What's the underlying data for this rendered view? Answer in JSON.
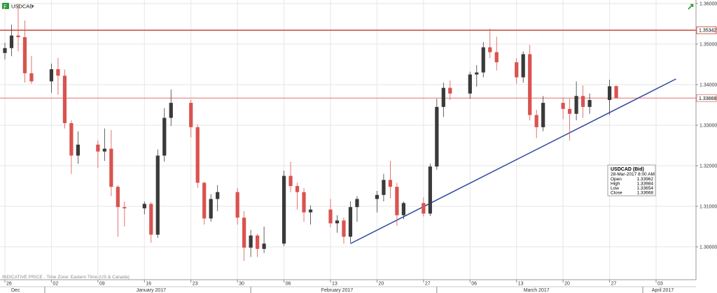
{
  "header": {
    "symbol": "USDCAD",
    "symbol_icon": "chart-type-icon",
    "dropdown_icon": "caret-down-icon",
    "corner_icon": "trend-arrow-icon"
  },
  "footer_note": "INDICATIVE PRICE · Time Zone: Eastern Time (US & Canada)",
  "info_panel": {
    "title": "USDCAD (Bid)",
    "datetime": "28-Mar-2017 8:00 AM",
    "rows": [
      {
        "label": "Open",
        "value": "1.33962"
      },
      {
        "label": "High",
        "value": "1.33984"
      },
      {
        "label": "Low",
        "value": "1.33654"
      },
      {
        "label": "Close",
        "value": "1.33668"
      }
    ]
  },
  "colors": {
    "up": "#3a3a3a",
    "down": "#d9534f",
    "resistance": "#c0392b",
    "last_price": "#e07070",
    "trendline": "#2e4a9e",
    "grid": "#e6e6e6"
  },
  "chart_data": {
    "type": "candlestick",
    "title": "",
    "xlabel": "",
    "ylabel": "",
    "ylim": [
      1.292,
      1.36
    ],
    "y_ticks": [
      {
        "value": 1.36,
        "label": "1.36000"
      },
      {
        "value": 1.35,
        "label": "1.35000"
      },
      {
        "value": 1.34,
        "label": "1.34000"
      },
      {
        "value": 1.33,
        "label": "1.33000"
      },
      {
        "value": 1.32,
        "label": "1.32000"
      },
      {
        "value": 1.31,
        "label": "1.31000"
      },
      {
        "value": 1.3,
        "label": "1.30000"
      }
    ],
    "x_day_ticks": [
      "26",
      "02",
      "09",
      "16",
      "23",
      "30",
      "06",
      "13",
      "20",
      "27",
      "06",
      "13",
      "20",
      "27",
      "03"
    ],
    "x_months": [
      "Dec",
      "January 2017",
      "February 2017",
      "March 2017",
      "April 2017"
    ],
    "horizontal_lines": [
      {
        "name": "resistance",
        "value": 1.35342,
        "label": "1.35342"
      },
      {
        "name": "last-price",
        "value": 1.33668,
        "label": "1.33668"
      }
    ],
    "trendline": {
      "from": {
        "x": "2017-02-16",
        "y": 1.3008
      },
      "to": {
        "x": "2017-04-06",
        "y": 1.3414
      }
    },
    "series": [
      {
        "x": "2016-12-26",
        "values": [
          1.3478,
          1.3503,
          1.3462,
          1.349
        ]
      },
      {
        "x": "2016-12-27",
        "values": [
          1.349,
          1.3548,
          1.347,
          1.3521
        ]
      },
      {
        "x": "2016-12-28",
        "values": [
          1.3521,
          1.3599,
          1.3482,
          1.3517
        ]
      },
      {
        "x": "2016-12-29",
        "values": [
          1.3517,
          1.3558,
          1.3405,
          1.3428
        ]
      },
      {
        "x": "2016-12-30",
        "values": [
          1.3428,
          1.3471,
          1.3402,
          1.3408
        ]
      },
      {
        "x": "2017-01-02",
        "values": [
          1.3408,
          1.3452,
          1.338,
          1.3438
        ]
      },
      {
        "x": "2017-01-03",
        "values": [
          1.3438,
          1.3466,
          1.3375,
          1.3422
        ]
      },
      {
        "x": "2017-01-04",
        "values": [
          1.3422,
          1.3437,
          1.3292,
          1.3305
        ]
      },
      {
        "x": "2017-01-05",
        "values": [
          1.3305,
          1.3312,
          1.318,
          1.3225
        ]
      },
      {
        "x": "2017-01-06",
        "values": [
          1.3225,
          1.3285,
          1.3205,
          1.3252
        ]
      },
      {
        "x": "2017-01-09",
        "values": [
          1.3252,
          1.3262,
          1.3195,
          1.3235
        ]
      },
      {
        "x": "2017-01-10",
        "values": [
          1.3235,
          1.3292,
          1.3212,
          1.3242
        ]
      },
      {
        "x": "2017-01-11",
        "values": [
          1.3242,
          1.3288,
          1.3125,
          1.3148
        ]
      },
      {
        "x": "2017-01-12",
        "values": [
          1.3148,
          1.3152,
          1.3025,
          1.3098
        ]
      },
      {
        "x": "2017-01-13",
        "values": [
          1.3098,
          1.3112,
          1.305,
          1.3095
        ]
      },
      {
        "x": "2017-01-16",
        "values": [
          1.3095,
          1.3112,
          1.308,
          1.3106
        ]
      },
      {
        "x": "2017-01-17",
        "values": [
          1.3106,
          1.311,
          1.301,
          1.303
        ]
      },
      {
        "x": "2017-01-18",
        "values": [
          1.303,
          1.324,
          1.3022,
          1.3225
        ]
      },
      {
        "x": "2017-01-19",
        "values": [
          1.3225,
          1.3342,
          1.321,
          1.3318
        ]
      },
      {
        "x": "2017-01-20",
        "values": [
          1.3318,
          1.3388,
          1.3298,
          1.3355
        ]
      },
      {
        "x": "2017-01-23",
        "values": [
          1.3355,
          1.3362,
          1.327,
          1.3295
        ]
      },
      {
        "x": "2017-01-24",
        "values": [
          1.3295,
          1.3302,
          1.3145,
          1.3158
        ]
      },
      {
        "x": "2017-01-25",
        "values": [
          1.3158,
          1.316,
          1.3055,
          1.307
        ]
      },
      {
        "x": "2017-01-26",
        "values": [
          1.307,
          1.313,
          1.3062,
          1.3118
        ]
      },
      {
        "x": "2017-01-27",
        "values": [
          1.3118,
          1.3152,
          1.3088,
          1.3135
        ]
      },
      {
        "x": "2017-01-30",
        "values": [
          1.3135,
          1.3145,
          1.3055,
          1.3072
        ]
      },
      {
        "x": "2017-01-31",
        "values": [
          1.3072,
          1.3088,
          1.2965,
          1.2998
        ]
      },
      {
        "x": "2017-02-01",
        "values": [
          1.2998,
          1.3042,
          1.2975,
          1.3028
        ]
      },
      {
        "x": "2017-02-02",
        "values": [
          1.3028,
          1.3032,
          1.2975,
          1.2995
        ]
      },
      {
        "x": "2017-02-03",
        "values": [
          1.2995,
          1.305,
          1.2985,
          1.3008
        ]
      },
      {
        "x": "2017-02-06",
        "values": [
          1.3008,
          1.3188,
          1.3002,
          1.3175
        ]
      },
      {
        "x": "2017-02-07",
        "values": [
          1.3175,
          1.321,
          1.3135,
          1.315
        ]
      },
      {
        "x": "2017-02-08",
        "values": [
          1.315,
          1.3158,
          1.3092,
          1.3135
        ]
      },
      {
        "x": "2017-02-09",
        "values": [
          1.3135,
          1.3145,
          1.3062,
          1.3085
        ]
      },
      {
        "x": "2017-02-10",
        "values": [
          1.3085,
          1.3102,
          1.3055,
          1.3092
        ]
      },
      {
        "x": "2017-02-13",
        "values": [
          1.3092,
          1.3118,
          1.3048,
          1.3058
        ]
      },
      {
        "x": "2017-02-14",
        "values": [
          1.3058,
          1.3078,
          1.3035,
          1.3065
        ]
      },
      {
        "x": "2017-02-15",
        "values": [
          1.3065,
          1.3072,
          1.3008,
          1.3025
        ]
      },
      {
        "x": "2017-02-16",
        "values": [
          1.3025,
          1.3112,
          1.301,
          1.3098
        ]
      },
      {
        "x": "2017-02-17",
        "values": [
          1.3098,
          1.3125,
          1.3062,
          1.3118
        ]
      },
      {
        "x": "2017-02-20",
        "values": [
          1.3118,
          1.3138,
          1.3085,
          1.3128
        ]
      },
      {
        "x": "2017-02-21",
        "values": [
          1.3128,
          1.318,
          1.3112,
          1.3165
        ]
      },
      {
        "x": "2017-02-22",
        "values": [
          1.3165,
          1.3212,
          1.312,
          1.3148
        ]
      },
      {
        "x": "2017-02-23",
        "values": [
          1.3148,
          1.3158,
          1.3052,
          1.3078
        ]
      },
      {
        "x": "2017-02-24",
        "values": [
          1.3078,
          1.3112,
          1.3068,
          1.3108
        ]
      },
      {
        "x": "2017-02-27",
        "values": [
          1.3108,
          1.3122,
          1.3075,
          1.3082
        ]
      },
      {
        "x": "2017-02-28",
        "values": [
          1.3082,
          1.3205,
          1.3076,
          1.3198
        ]
      },
      {
        "x": "2017-03-01",
        "values": [
          1.3198,
          1.3365,
          1.319,
          1.3345
        ]
      },
      {
        "x": "2017-03-02",
        "values": [
          1.3345,
          1.3405,
          1.332,
          1.3392
        ]
      },
      {
        "x": "2017-03-03",
        "values": [
          1.3392,
          1.341,
          1.3362,
          1.3378
        ]
      },
      {
        "x": "2017-03-06",
        "values": [
          1.3378,
          1.3432,
          1.3365,
          1.3425
        ]
      },
      {
        "x": "2017-03-07",
        "values": [
          1.3425,
          1.3448,
          1.3395,
          1.343
        ]
      },
      {
        "x": "2017-03-08",
        "values": [
          1.343,
          1.3505,
          1.3418,
          1.3492
        ]
      },
      {
        "x": "2017-03-09",
        "values": [
          1.3492,
          1.3538,
          1.3465,
          1.348
        ]
      },
      {
        "x": "2017-03-10",
        "values": [
          1.348,
          1.3518,
          1.3435,
          1.3455
        ]
      },
      {
        "x": "2017-03-13",
        "values": [
          1.3455,
          1.3465,
          1.3402,
          1.3418
        ]
      },
      {
        "x": "2017-03-14",
        "values": [
          1.3418,
          1.3482,
          1.3405,
          1.3475
        ]
      },
      {
        "x": "2017-03-15",
        "values": [
          1.3475,
          1.3498,
          1.3312,
          1.3325
        ]
      },
      {
        "x": "2017-03-16",
        "values": [
          1.3325,
          1.3338,
          1.3268,
          1.3295
        ]
      },
      {
        "x": "2017-03-17",
        "values": [
          1.3295,
          1.3372,
          1.3285,
          1.3355
        ]
      },
      {
        "x": "2017-03-20",
        "values": [
          1.3355,
          1.3368,
          1.3315,
          1.334
        ]
      },
      {
        "x": "2017-03-21",
        "values": [
          1.334,
          1.3365,
          1.3262,
          1.3328
        ]
      },
      {
        "x": "2017-03-22",
        "values": [
          1.3328,
          1.3408,
          1.3312,
          1.3372
        ]
      },
      {
        "x": "2017-03-23",
        "values": [
          1.3372,
          1.3398,
          1.3318,
          1.3345
        ]
      },
      {
        "x": "2017-03-24",
        "values": [
          1.3345,
          1.3378,
          1.3328,
          1.3362
        ]
      },
      {
        "x": "2017-03-27",
        "values": [
          1.3362,
          1.3412,
          1.3325,
          1.3396
        ]
      },
      {
        "x": "2017-03-28",
        "values": [
          1.33962,
          1.33984,
          1.33654,
          1.33668
        ]
      }
    ]
  }
}
